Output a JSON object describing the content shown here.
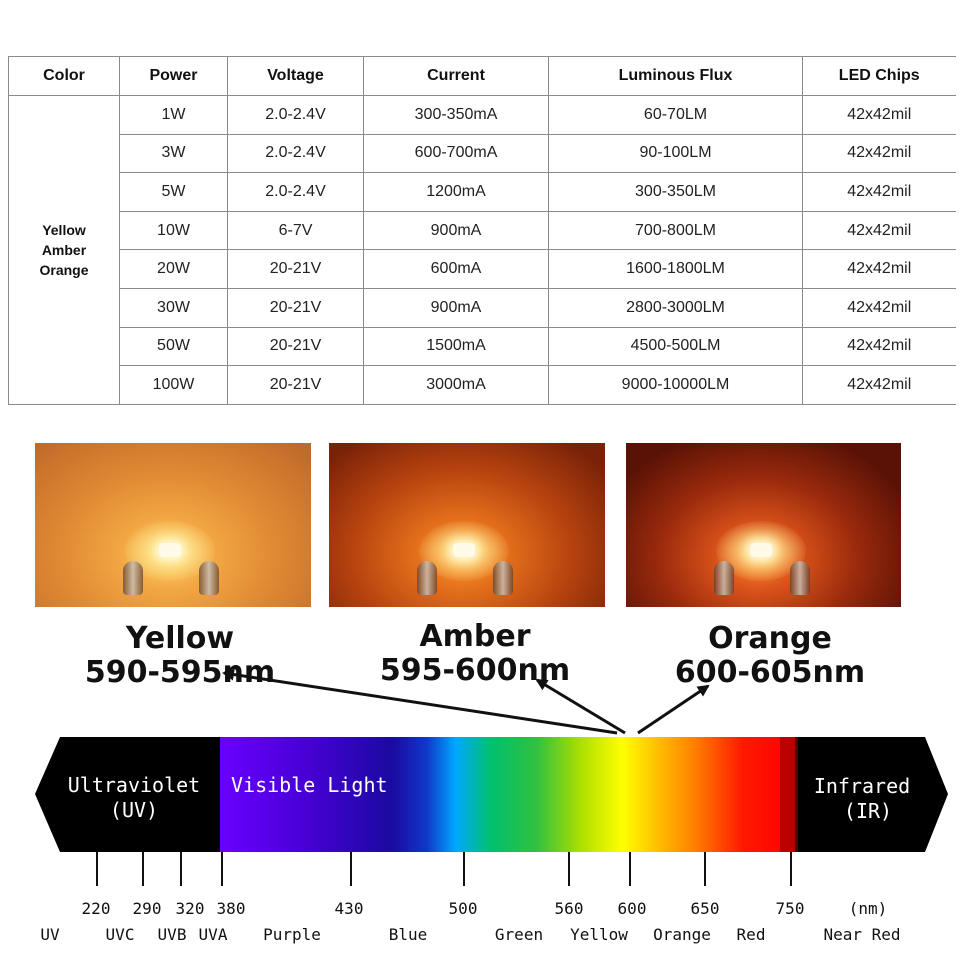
{
  "table": {
    "headers": [
      "Color",
      "Power",
      "Voltage",
      "Current",
      "Luminous Flux",
      "LED Chips"
    ],
    "color_group": [
      "Yellow",
      "Amber",
      "Orange"
    ],
    "rows": [
      {
        "power": "1W",
        "voltage": "2.0-2.4V",
        "current": "300-350mA",
        "flux": "60-70LM",
        "chips": "42x42mil"
      },
      {
        "power": "3W",
        "voltage": "2.0-2.4V",
        "current": "600-700mA",
        "flux": "90-100LM",
        "chips": "42x42mil"
      },
      {
        "power": "5W",
        "voltage": "2.0-2.4V",
        "current": "1200mA",
        "flux": "300-350LM",
        "chips": "42x42mil"
      },
      {
        "power": "10W",
        "voltage": "6-7V",
        "current": "900mA",
        "flux": "700-800LM",
        "chips": "42x42mil"
      },
      {
        "power": "20W",
        "voltage": "20-21V",
        "current": "600mA",
        "flux": "1600-1800LM",
        "chips": "42x42mil"
      },
      {
        "power": "30W",
        "voltage": "20-21V",
        "current": "900mA",
        "flux": "2800-3000LM",
        "chips": "42x42mil"
      },
      {
        "power": "50W",
        "voltage": "20-21V",
        "current": "1500mA",
        "flux": "4500-500LM",
        "chips": "42x42mil"
      },
      {
        "power": "100W",
        "voltage": "20-21V",
        "current": "3000mA",
        "flux": "9000-10000LM",
        "chips": "42x42mil"
      }
    ]
  },
  "leds": [
    {
      "name": "Yellow",
      "range": "590-595nm"
    },
    {
      "name": "Amber",
      "range": "595-600nm"
    },
    {
      "name": "Orange",
      "range": "600-605nm"
    }
  ],
  "spectrum": {
    "uv_label": "Ultraviolet",
    "uv_sub": "(UV)",
    "visible_label": "Visible Light",
    "ir_label": "Infrared",
    "ir_sub": "(IR)",
    "ticks": [
      "220",
      "290",
      "320",
      "380",
      "430",
      "500",
      "560",
      "600",
      "650",
      "750"
    ],
    "unit": "(nm)",
    "bands": [
      "UV",
      "UVC",
      "UVB",
      "UVA",
      "Purple",
      "Blue",
      "Green",
      "Yellow",
      "Orange",
      "Red",
      "Near Red"
    ]
  },
  "colors": {
    "yellow_photo": "#f2a643",
    "amber_photo": "#e4701c",
    "orange_photo": "#d9521a",
    "spectrum_black": "#000000"
  }
}
